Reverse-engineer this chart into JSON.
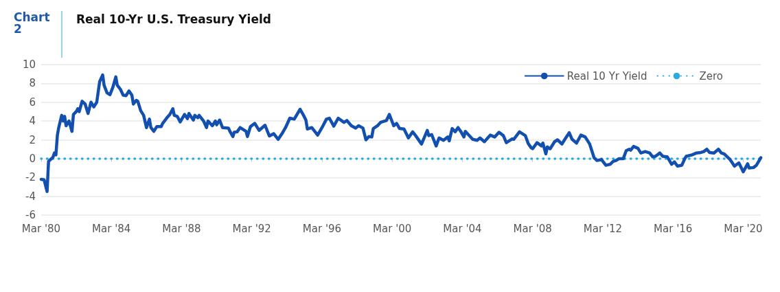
{
  "chart_data": {
    "type": "line",
    "title": "Real 10-Yr U.S. Treasury Yield",
    "annotations": [
      "Chart 2"
    ],
    "xlim": [
      "1980-03",
      "2021-03"
    ],
    "xticks": [
      {
        "value": "1980-03",
        "label": "Mar '80"
      },
      {
        "value": "1984-03",
        "label": "Mar '84"
      },
      {
        "value": "1988-03",
        "label": "Mar '88"
      },
      {
        "value": "1992-03",
        "label": "Mar '92"
      },
      {
        "value": "1996-03",
        "label": "Mar '96"
      },
      {
        "value": "2000-03",
        "label": "Mar '00"
      },
      {
        "value": "2004-03",
        "label": "Mar '04"
      },
      {
        "value": "2008-03",
        "label": "Mar '08"
      },
      {
        "value": "2012-03",
        "label": "Mar '12"
      },
      {
        "value": "2016-03",
        "label": "Mar '16"
      },
      {
        "value": "2020-03",
        "label": "Mar '20"
      }
    ],
    "ylim": [
      -6,
      10
    ],
    "yticks": [
      -6,
      -4,
      -2,
      0,
      2,
      4,
      6,
      8,
      10
    ],
    "grid": "y",
    "legend": "top right",
    "marker": "none",
    "series": [
      {
        "name": "Real 10 Yr Yield",
        "color": "#124fae",
        "line_style": "solid",
        "x": [
          "1980-03",
          "1980-05",
          "1980-07",
          "1980-08",
          "1980-11",
          "1980-12",
          "1981-01",
          "1981-02",
          "1981-03",
          "1981-05",
          "1981-06",
          "1981-07",
          "1981-08",
          "1981-10",
          "1981-12",
          "1982-01",
          "1982-03",
          "1982-04",
          "1982-05",
          "1982-07",
          "1982-09",
          "1982-11",
          "1983-01",
          "1983-03",
          "1983-05",
          "1983-07",
          "1983-09",
          "1983-10",
          "1983-12",
          "1984-02",
          "1984-04",
          "1984-06",
          "1984-07",
          "1984-09",
          "1984-11",
          "1985-01",
          "1985-03",
          "1985-05",
          "1985-06",
          "1985-08",
          "1985-09",
          "1985-11",
          "1986-01",
          "1986-03",
          "1986-05",
          "1986-06",
          "1986-08",
          "1986-10",
          "1987-01",
          "1987-02",
          "1987-05",
          "1987-07",
          "1987-09",
          "1987-10",
          "1987-12",
          "1988-02",
          "1988-05",
          "1988-07",
          "1988-08",
          "1988-11",
          "1988-12",
          "1989-02",
          "1989-03",
          "1989-06",
          "1989-08",
          "1989-09",
          "1989-12",
          "1990-02",
          "1990-03",
          "1990-05",
          "1990-07",
          "1990-11",
          "1990-12",
          "1991-02",
          "1991-03",
          "1991-05",
          "1991-07",
          "1991-11",
          "1991-12",
          "1992-02",
          "1992-05",
          "1992-07",
          "1992-08",
          "1992-12",
          "1993-03",
          "1993-06",
          "1993-09",
          "1993-12",
          "1994-02",
          "1994-05",
          "1994-08",
          "1994-12",
          "1995-02",
          "1995-04",
          "1995-05",
          "1995-08",
          "1995-10",
          "1995-12",
          "1996-03",
          "1996-06",
          "1996-08",
          "1996-11",
          "1997-02",
          "1997-06",
          "1997-08",
          "1997-11",
          "1998-02",
          "1998-04",
          "1998-07",
          "1998-09",
          "1998-11",
          "1999-01",
          "1999-02",
          "1999-05",
          "1999-07",
          "1999-11",
          "2000-01",
          "2000-04",
          "2000-06",
          "2000-08",
          "2000-11",
          "2001-02",
          "2001-05",
          "2001-07",
          "2001-11",
          "2002-03",
          "2002-04",
          "2002-06",
          "2002-09",
          "2002-11",
          "2003-02",
          "2003-05",
          "2003-06",
          "2003-08",
          "2003-10",
          "2003-12",
          "2004-02",
          "2004-04",
          "2004-05",
          "2004-10",
          "2005-01",
          "2005-03",
          "2005-06",
          "2005-10",
          "2006-01",
          "2006-04",
          "2006-07",
          "2006-09",
          "2007-01",
          "2007-02",
          "2007-06",
          "2007-10",
          "2007-12",
          "2008-02",
          "2008-03",
          "2008-06",
          "2008-09",
          "2008-10",
          "2008-12",
          "2009-01",
          "2009-03",
          "2009-06",
          "2009-08",
          "2009-11",
          "2010-01",
          "2010-04",
          "2010-06",
          "2010-09",
          "2010-12",
          "2011-03",
          "2011-06",
          "2011-09",
          "2011-11",
          "2012-02",
          "2012-05",
          "2012-08",
          "2012-10",
          "2012-12",
          "2013-02",
          "2013-05",
          "2013-07",
          "2013-09",
          "2013-10",
          "2013-12",
          "2014-03",
          "2014-05",
          "2014-08",
          "2014-11",
          "2015-01",
          "2015-03",
          "2015-06",
          "2015-08",
          "2015-11",
          "2016-02",
          "2016-04",
          "2016-06",
          "2016-09",
          "2016-11",
          "2016-12",
          "2017-04",
          "2017-07",
          "2017-10",
          "2017-12",
          "2018-02",
          "2018-04",
          "2018-07",
          "2018-10",
          "2018-12",
          "2019-02",
          "2019-06",
          "2019-09",
          "2019-12",
          "2020-03",
          "2020-06",
          "2020-07",
          "2020-10",
          "2020-12",
          "2021-03"
        ],
        "values": [
          -2.2,
          -2.26,
          -3.5,
          -0.3,
          0.15,
          0.6,
          0.4,
          2.5,
          3.3,
          4.6,
          4.0,
          4.5,
          3.5,
          4.0,
          2.9,
          4.7,
          5.0,
          5.3,
          5.0,
          6.1,
          5.8,
          4.8,
          6.0,
          5.5,
          6.0,
          8.2,
          8.9,
          7.8,
          7.0,
          6.8,
          7.6,
          8.7,
          7.8,
          7.4,
          6.75,
          6.7,
          7.2,
          6.75,
          5.8,
          6.2,
          6.1,
          5.1,
          4.6,
          3.3,
          4.2,
          3.3,
          2.9,
          3.4,
          3.4,
          3.75,
          4.35,
          4.7,
          5.3,
          4.6,
          4.5,
          3.9,
          4.7,
          4.25,
          4.8,
          4.1,
          4.6,
          4.35,
          4.6,
          4.0,
          3.3,
          4.0,
          3.5,
          4.0,
          3.6,
          4.1,
          3.3,
          3.25,
          2.9,
          2.35,
          2.8,
          2.85,
          3.3,
          2.9,
          2.35,
          3.4,
          3.75,
          3.25,
          3.0,
          3.55,
          2.4,
          2.65,
          2.05,
          2.75,
          3.3,
          4.3,
          4.2,
          5.25,
          4.7,
          4.1,
          3.15,
          3.3,
          2.9,
          2.5,
          3.3,
          4.2,
          4.3,
          3.45,
          4.3,
          3.85,
          4.05,
          3.5,
          3.25,
          3.5,
          3.25,
          2.0,
          2.35,
          2.3,
          3.2,
          3.5,
          3.85,
          4.05,
          4.7,
          3.5,
          3.75,
          3.2,
          3.15,
          2.2,
          2.85,
          2.45,
          1.55,
          3.0,
          2.45,
          2.55,
          1.35,
          2.2,
          1.95,
          2.3,
          1.9,
          3.2,
          2.85,
          3.3,
          2.85,
          2.3,
          2.9,
          2.05,
          1.95,
          2.2,
          1.8,
          2.5,
          2.3,
          2.8,
          2.45,
          1.7,
          2.1,
          2.05,
          2.85,
          2.45,
          1.6,
          1.15,
          1.05,
          1.7,
          1.35,
          1.65,
          0.5,
          1.25,
          1.05,
          1.8,
          2.0,
          1.55,
          2.05,
          2.75,
          2.05,
          1.65,
          2.5,
          2.3,
          1.55,
          0.1,
          -0.2,
          -0.1,
          -0.7,
          -0.6,
          -0.3,
          -0.2,
          0.0,
          0.0,
          0.85,
          1.0,
          0.9,
          1.3,
          1.1,
          0.6,
          0.75,
          0.6,
          0.2,
          0.25,
          0.6,
          0.25,
          0.2,
          -0.6,
          -0.35,
          -0.8,
          -0.7,
          0.0,
          0.25,
          0.4,
          0.6,
          0.65,
          0.75,
          1.0,
          0.65,
          0.6,
          1.0,
          0.6,
          0.5,
          -0.1,
          -0.8,
          -0.45,
          -1.4,
          -0.55,
          -1.0,
          -0.95,
          -0.7,
          0.1
        ]
      },
      {
        "name": "Zero",
        "color": "#29abe2",
        "line_style": "dotted",
        "x": [
          "1980-03",
          "2021-03"
        ],
        "values": [
          0,
          0
        ]
      }
    ]
  }
}
